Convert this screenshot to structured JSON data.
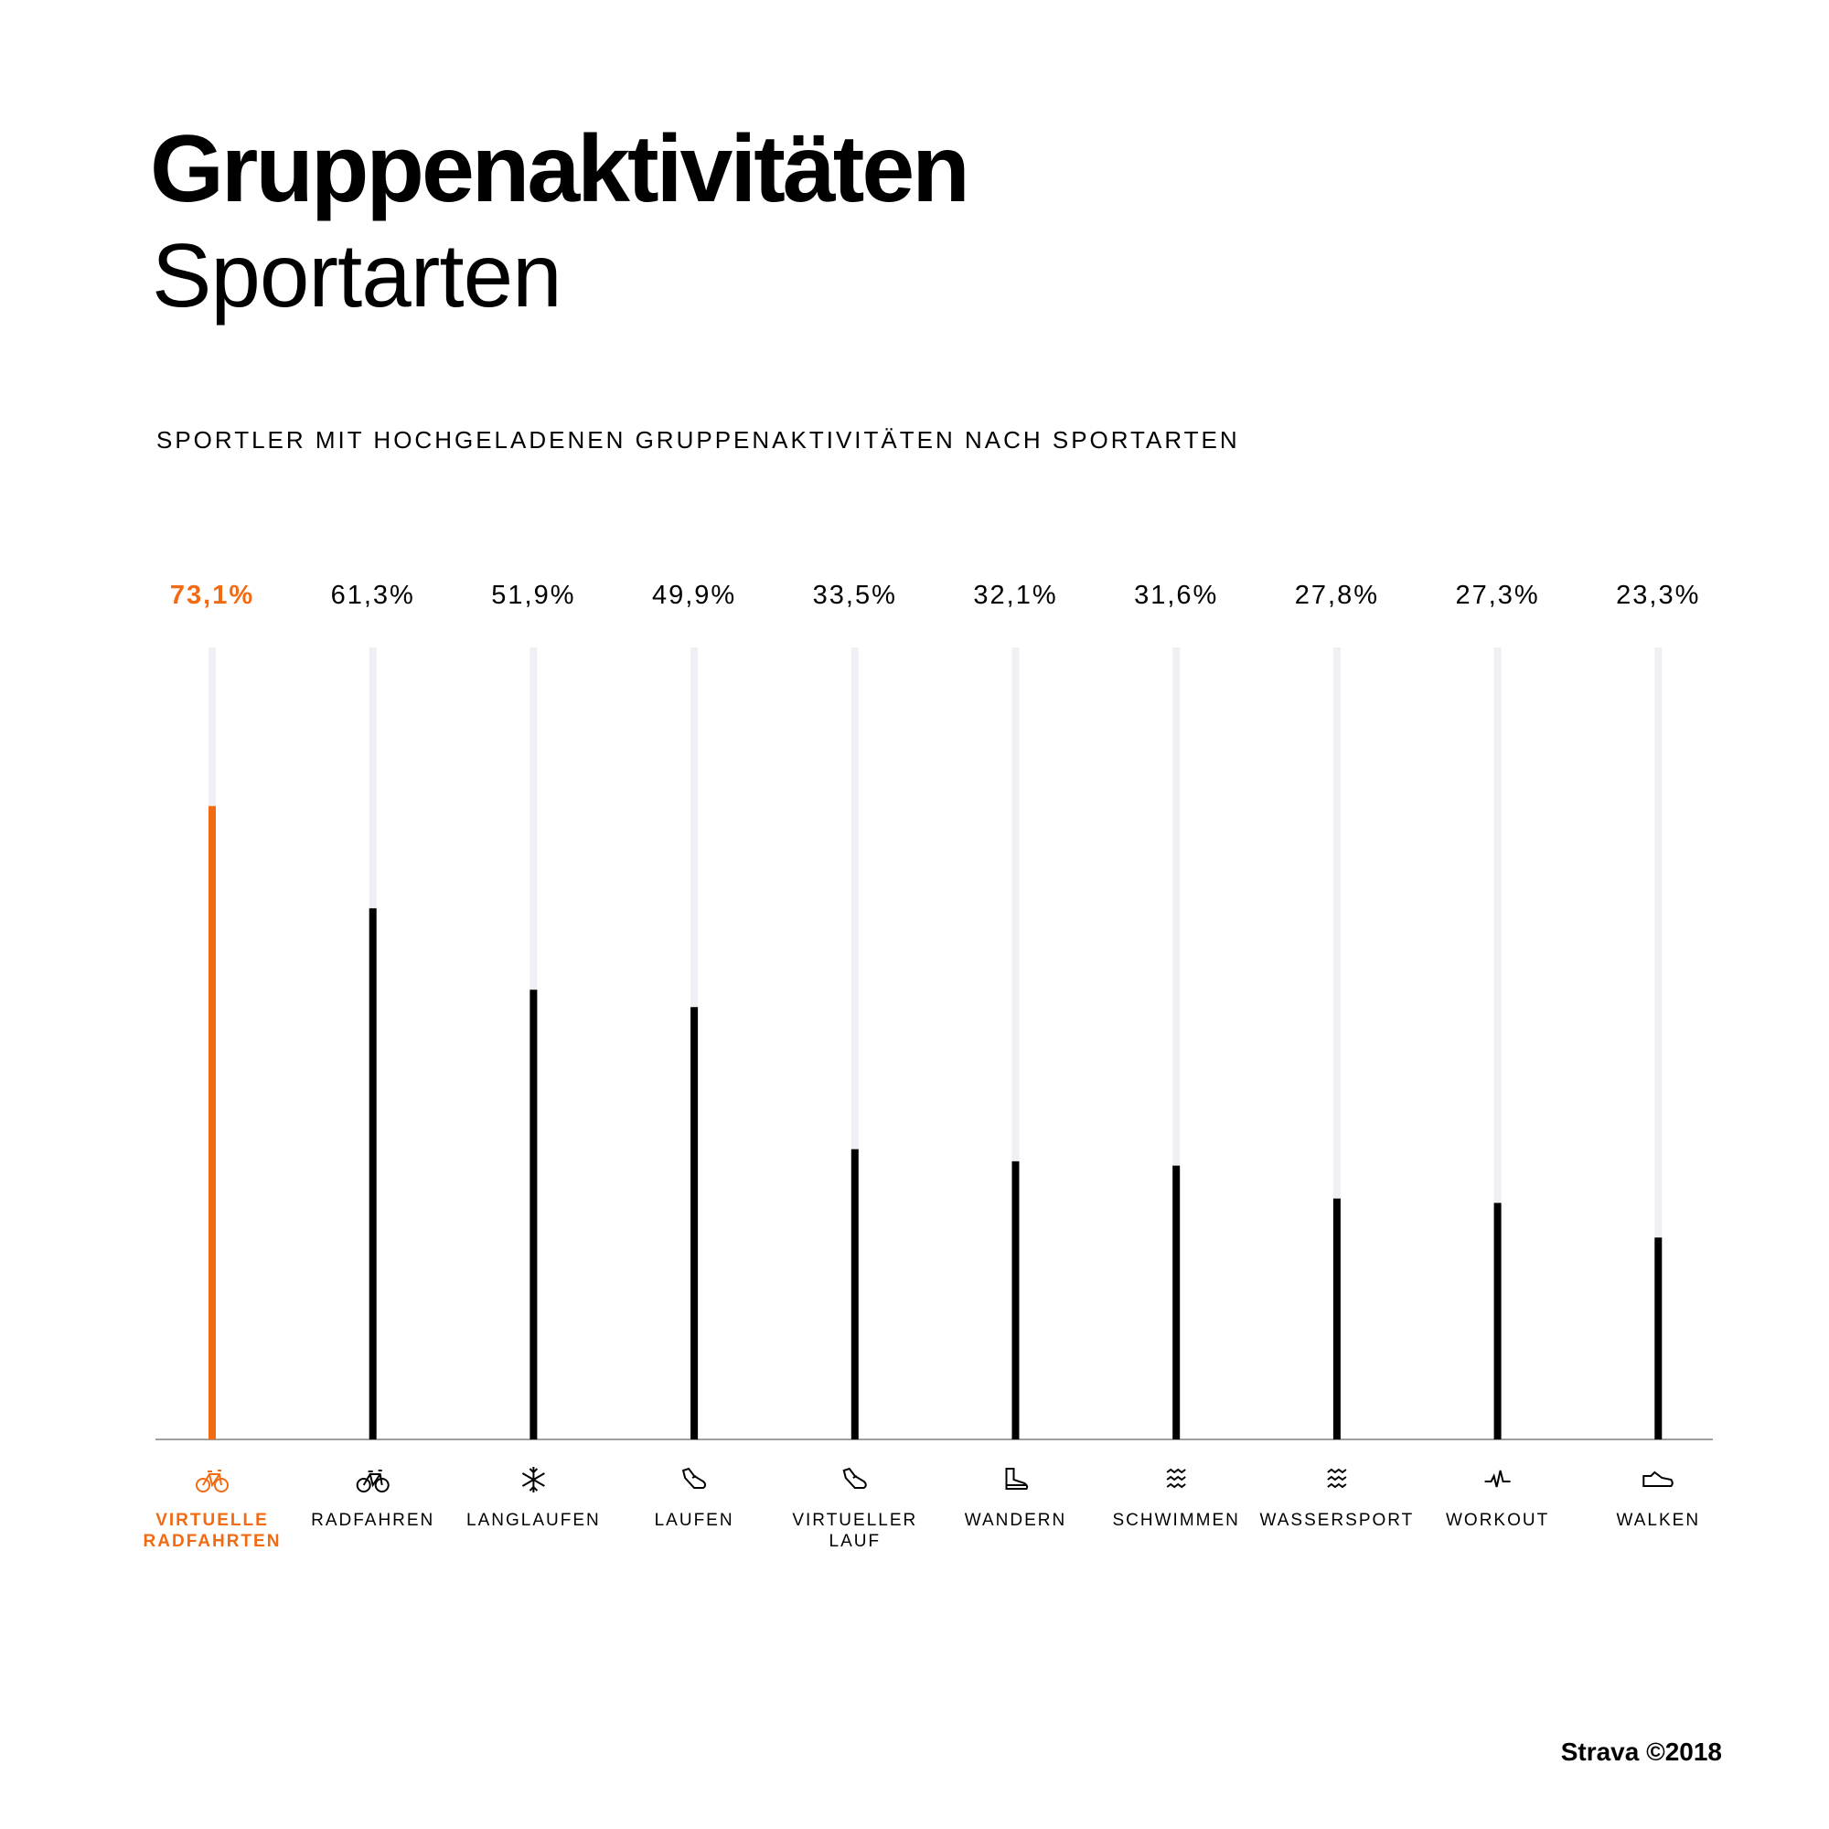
{
  "title": "Gruppenaktivitäten",
  "subtitle": "Sportarten",
  "caption": "SPORTLER MIT HOCHGELADENEN GRUPPENAKTIVITÄTEN NACH SPORTARTEN",
  "footer": "Strava ©2018",
  "colors": {
    "highlight": "#f26a12",
    "bar": "#000000",
    "track": "#efeff4",
    "axis": "#a0a0a0"
  },
  "chart_data": {
    "type": "bar",
    "title": "Gruppenaktivitäten",
    "subtitle": "SPORTLER MIT HOCHGELADENEN GRUPPENAKTIVITÄTEN NACH SPORTARTEN",
    "unit": "%",
    "categories": [
      "VIRTUELLE RADFAHRTEN",
      "RADFAHREN",
      "LANGLAUFEN",
      "LAUFEN",
      "VIRTUELLER LAUF",
      "WANDERN",
      "SCHWIMMEN",
      "WASSERSPORT",
      "WORKOUT",
      "WALKEN"
    ],
    "values": [
      73.1,
      61.3,
      51.9,
      49.9,
      33.5,
      32.1,
      31.6,
      27.8,
      27.3,
      23.3
    ],
    "value_labels": [
      "73,1%",
      "61,3%",
      "51,9%",
      "49,9%",
      "33,5%",
      "32,1%",
      "31,6%",
      "27,8%",
      "27,3%",
      "23,3%"
    ],
    "icons": [
      "bike-icon",
      "bike-icon",
      "snowflake-icon",
      "running-shoe-icon",
      "running-shoe-icon",
      "hiking-boot-icon",
      "waves-icon",
      "waves-icon",
      "pulse-icon",
      "walking-shoe-icon"
    ],
    "highlighted_index": 0,
    "ylim": [
      0,
      91.4
    ],
    "grid": false
  }
}
